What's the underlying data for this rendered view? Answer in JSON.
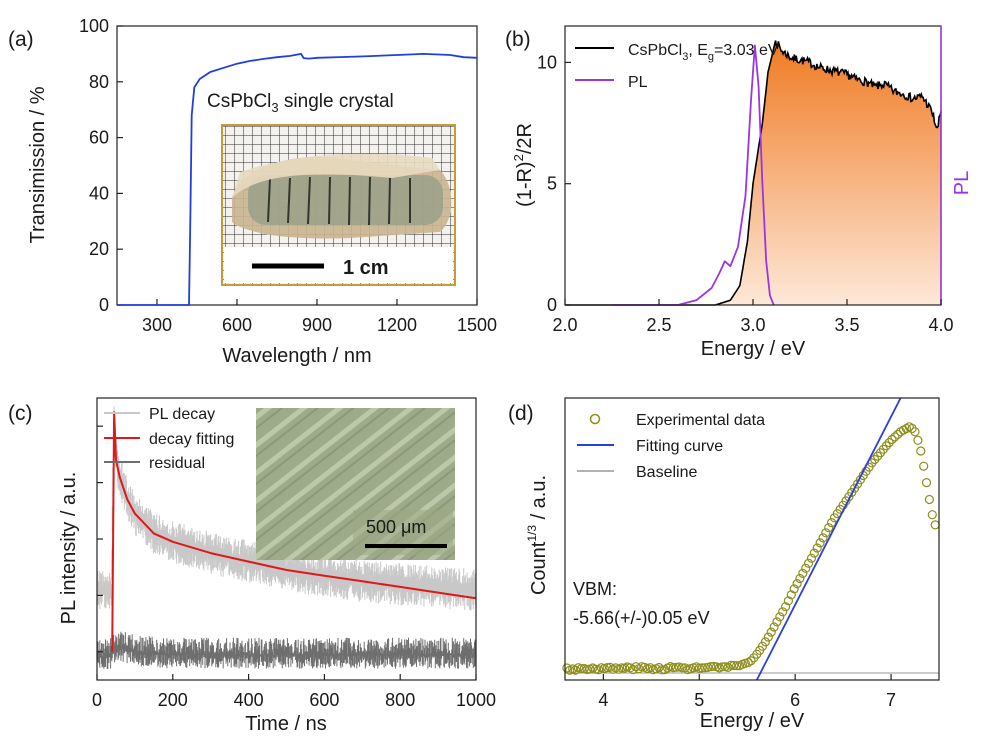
{
  "chart_data": [
    {
      "panel": "(a)",
      "type": "line",
      "xlabel": "Wavelength / nm",
      "ylabel": "Transimission / %",
      "xlim": [
        150,
        1500
      ],
      "ylim": [
        0,
        100
      ],
      "xticks": [
        "300",
        "600",
        "900",
        "1200",
        "1500"
      ],
      "yticks": [
        "0",
        "20",
        "40",
        "60",
        "80",
        "100"
      ],
      "series": [
        {
          "color": "#1f3fe0",
          "x": [
            150,
            420,
            425,
            430,
            440,
            460,
            500,
            550,
            600,
            650,
            700,
            750,
            800,
            840,
            850,
            870,
            900,
            1000,
            1100,
            1200,
            1300,
            1400,
            1450,
            1500
          ],
          "y": [
            0,
            0,
            30,
            68,
            78,
            81,
            83.5,
            85,
            86.5,
            87.5,
            88.2,
            88.8,
            89.3,
            90,
            88.5,
            88.3,
            88.6,
            88.9,
            89.2,
            89.6,
            90,
            89.6,
            88.8,
            88.6
          ]
        }
      ],
      "inset": {
        "caption": "CsPbCl3 single crystal",
        "scalebar": "1 cm"
      }
    },
    {
      "panel": "(b)",
      "type": "area",
      "xlabel": "Energy / eV",
      "ylabel": "(1-R)2/2R",
      "right_ylabel": "PL",
      "xlim": [
        2.0,
        4.0
      ],
      "ylim": [
        0,
        11.5
      ],
      "xticks": [
        "2.0",
        "2.5",
        "3.0",
        "3.5",
        "4.0"
      ],
      "yticks": [
        "0",
        "5",
        "10"
      ],
      "series": [
        {
          "name": "CsPbCl3, Eg=3.03 eV",
          "color": "#000000",
          "fill": "orange-gradient",
          "x": [
            2.0,
            2.8,
            2.88,
            2.93,
            2.97,
            3.0,
            3.02,
            3.05,
            3.08,
            3.12,
            3.15,
            3.2,
            3.25,
            3.3,
            3.35,
            3.4,
            3.45,
            3.5,
            3.55,
            3.6,
            3.65,
            3.7,
            3.75,
            3.8,
            3.85,
            3.9,
            3.95,
            3.98,
            4.0
          ],
          "y": [
            0,
            0,
            0.2,
            0.8,
            2.6,
            5.0,
            6.0,
            7.5,
            9.6,
            10.9,
            10.5,
            10.2,
            10.1,
            10.0,
            9.8,
            9.7,
            9.6,
            9.5,
            9.3,
            9.2,
            9.0,
            9.1,
            8.8,
            8.7,
            8.5,
            8.6,
            8.0,
            7.2,
            8.0
          ]
        },
        {
          "name": "PL",
          "color": "#9a35e6",
          "x": [
            2.25,
            2.6,
            2.7,
            2.78,
            2.82,
            2.85,
            2.88,
            2.92,
            2.96,
            2.99,
            3.01,
            3.03,
            3.05,
            3.07,
            3.09,
            3.11
          ],
          "y": [
            0,
            0,
            0.2,
            0.7,
            1.3,
            1.8,
            1.6,
            2.4,
            4.5,
            8.5,
            10.7,
            9.0,
            5.0,
            1.8,
            0.4,
            0
          ]
        }
      ]
    },
    {
      "panel": "(c)",
      "type": "line",
      "xlabel": "Time / ns",
      "ylabel": "PL intensity / a.u.",
      "xlim": [
        0,
        1000
      ],
      "xticks": [
        "0",
        "200",
        "400",
        "600",
        "800",
        "1000"
      ],
      "series": [
        {
          "name": "PL decay",
          "color": "#c8c8c8",
          "x": [
            0,
            38,
            45,
            50,
            60,
            80,
            100,
            150,
            200,
            300,
            400,
            500,
            600,
            700,
            800,
            900,
            1000
          ],
          "y": [
            0.32,
            0.32,
            0.95,
            0.8,
            0.72,
            0.64,
            0.59,
            0.52,
            0.49,
            0.45,
            0.42,
            0.39,
            0.37,
            0.35,
            0.34,
            0.33,
            0.32
          ]
        },
        {
          "name": "decay fitting",
          "color": "#e01818",
          "x": [
            40,
            45,
            50,
            60,
            80,
            100,
            150,
            200,
            300,
            400,
            500,
            600,
            700,
            800,
            900,
            1000
          ],
          "y": [
            0.1,
            0.95,
            0.78,
            0.72,
            0.64,
            0.59,
            0.52,
            0.49,
            0.45,
            0.42,
            0.39,
            0.37,
            0.35,
            0.33,
            0.31,
            0.29
          ]
        },
        {
          "name": "residual",
          "color": "#6e6e6e",
          "x": [
            0,
            40,
            50,
            100,
            200,
            400,
            600,
            800,
            1000
          ],
          "y": [
            0.08,
            0.09,
            0.12,
            0.1,
            0.09,
            0.09,
            0.09,
            0.09,
            0.09
          ]
        }
      ],
      "inset": {
        "scalebar": "500 μm"
      }
    },
    {
      "panel": "(d)",
      "type": "scatter",
      "xlabel": "Energy / eV",
      "ylabel": "Count1/3 / a.u.",
      "xlim": [
        3.6,
        7.5
      ],
      "ylim": [
        0,
        1
      ],
      "xticks": [
        "4",
        "5",
        "6",
        "7"
      ],
      "annotation": [
        "VBM:",
        "-5.66(+/-)0.05 eV"
      ],
      "series": [
        {
          "name": "Experimental data",
          "color": "#8e8e1c",
          "x": [
            3.7,
            3.9,
            4.1,
            4.3,
            4.5,
            4.7,
            4.9,
            5.1,
            5.3,
            5.45,
            5.55,
            5.62,
            5.7,
            5.8,
            5.9,
            6.0,
            6.1,
            6.2,
            6.3,
            6.4,
            6.5,
            6.6,
            6.7,
            6.8,
            6.9,
            7.0,
            7.1,
            7.15,
            7.2,
            7.25,
            7.3,
            7.35,
            7.4,
            7.45
          ],
          "y": [
            0.04,
            0.042,
            0.04,
            0.043,
            0.041,
            0.043,
            0.042,
            0.044,
            0.045,
            0.05,
            0.07,
            0.1,
            0.14,
            0.2,
            0.26,
            0.33,
            0.39,
            0.45,
            0.51,
            0.57,
            0.62,
            0.67,
            0.72,
            0.77,
            0.81,
            0.85,
            0.88,
            0.89,
            0.9,
            0.88,
            0.83,
            0.74,
            0.64,
            0.55
          ]
        },
        {
          "name": "Fitting curve",
          "color": "#2a3fe0",
          "x": [
            5.6,
            7.1
          ],
          "y": [
            0,
            1.0
          ]
        },
        {
          "name": "Baseline",
          "color": "#999999",
          "x": [
            3.6,
            7.5
          ],
          "y": [
            0.025,
            0.025
          ]
        }
      ]
    }
  ]
}
